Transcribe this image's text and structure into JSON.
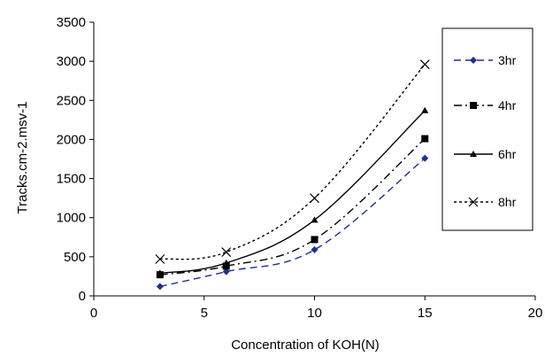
{
  "chart_data": {
    "type": "line",
    "title": "",
    "xlabel": "Concentration of KOH(N)",
    "ylabel": "Tracks.cm-2.msv-1",
    "xlim": [
      0,
      20
    ],
    "ylim": [
      0,
      3500
    ],
    "xticks": [
      0,
      5,
      10,
      15,
      20
    ],
    "yticks": [
      0,
      500,
      1000,
      1500,
      2000,
      2500,
      3000,
      3500
    ],
    "grid": false,
    "legend_position": "right",
    "x": [
      3,
      6,
      10,
      15
    ],
    "series": [
      {
        "name": "3hr",
        "values": [
          120,
          310,
          590,
          1760
        ],
        "color": "#1f2f8f",
        "dash": "dashed",
        "marker": "diamond"
      },
      {
        "name": "4hr",
        "values": [
          270,
          380,
          720,
          2010
        ],
        "color": "#000000",
        "dash": "dashdot",
        "marker": "square"
      },
      {
        "name": "6hr",
        "values": [
          290,
          420,
          970,
          2370
        ],
        "color": "#000000",
        "dash": "solid",
        "marker": "triangle"
      },
      {
        "name": "8hr",
        "values": [
          470,
          560,
          1250,
          2960
        ],
        "color": "#000000",
        "dash": "dotted",
        "marker": "x"
      }
    ]
  }
}
